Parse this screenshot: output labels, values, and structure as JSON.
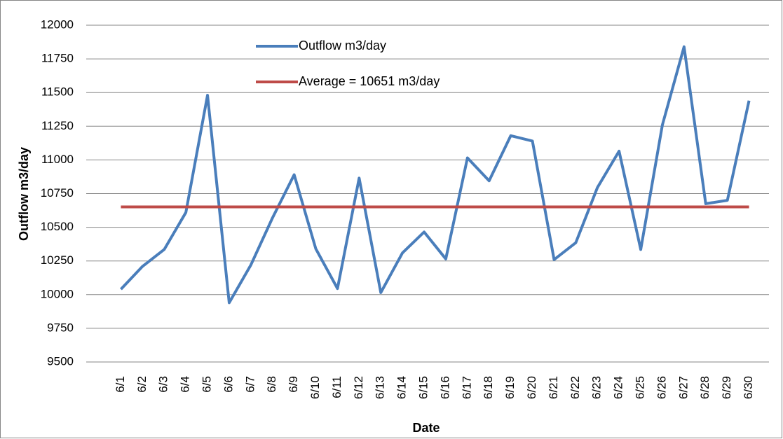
{
  "chart_data": {
    "type": "line",
    "x_label": "Date",
    "y_label": "Outflow m3/day",
    "categories": [
      "6/1",
      "6/2",
      "6/3",
      "6/4",
      "6/5",
      "6/6",
      "6/7",
      "6/8",
      "6/9",
      "6/10",
      "6/11",
      "6/12",
      "6/13",
      "6/14",
      "6/15",
      "6/16",
      "6/17",
      "6/18",
      "6/19",
      "6/20",
      "6/21",
      "6/22",
      "6/23",
      "6/24",
      "6/25",
      "6/26",
      "6/27",
      "6/28",
      "6/29",
      "6/30"
    ],
    "series": [
      {
        "name": "Outflow m3/day",
        "color": "#4a7ebb",
        "values": [
          10040,
          10210,
          10335,
          10610,
          11480,
          9940,
          10220,
          10570,
          10890,
          10340,
          10045,
          10865,
          10015,
          10310,
          10465,
          10265,
          11015,
          10845,
          11180,
          11140,
          10260,
          10385,
          10795,
          11065,
          10335,
          11260,
          11840,
          10675,
          10700,
          11440
        ]
      },
      {
        "name": "Average = 10651  m3/day",
        "color": "#be4b48",
        "values": [
          10651,
          10651,
          10651,
          10651,
          10651,
          10651,
          10651,
          10651,
          10651,
          10651,
          10651,
          10651,
          10651,
          10651,
          10651,
          10651,
          10651,
          10651,
          10651,
          10651,
          10651,
          10651,
          10651,
          10651,
          10651,
          10651,
          10651,
          10651,
          10651,
          10651
        ]
      }
    ],
    "ylim": [
      9500,
      12000
    ],
    "yticks": [
      9500,
      9750,
      10000,
      10250,
      10500,
      10750,
      11000,
      11250,
      11500,
      11750,
      12000
    ],
    "grid": true
  }
}
